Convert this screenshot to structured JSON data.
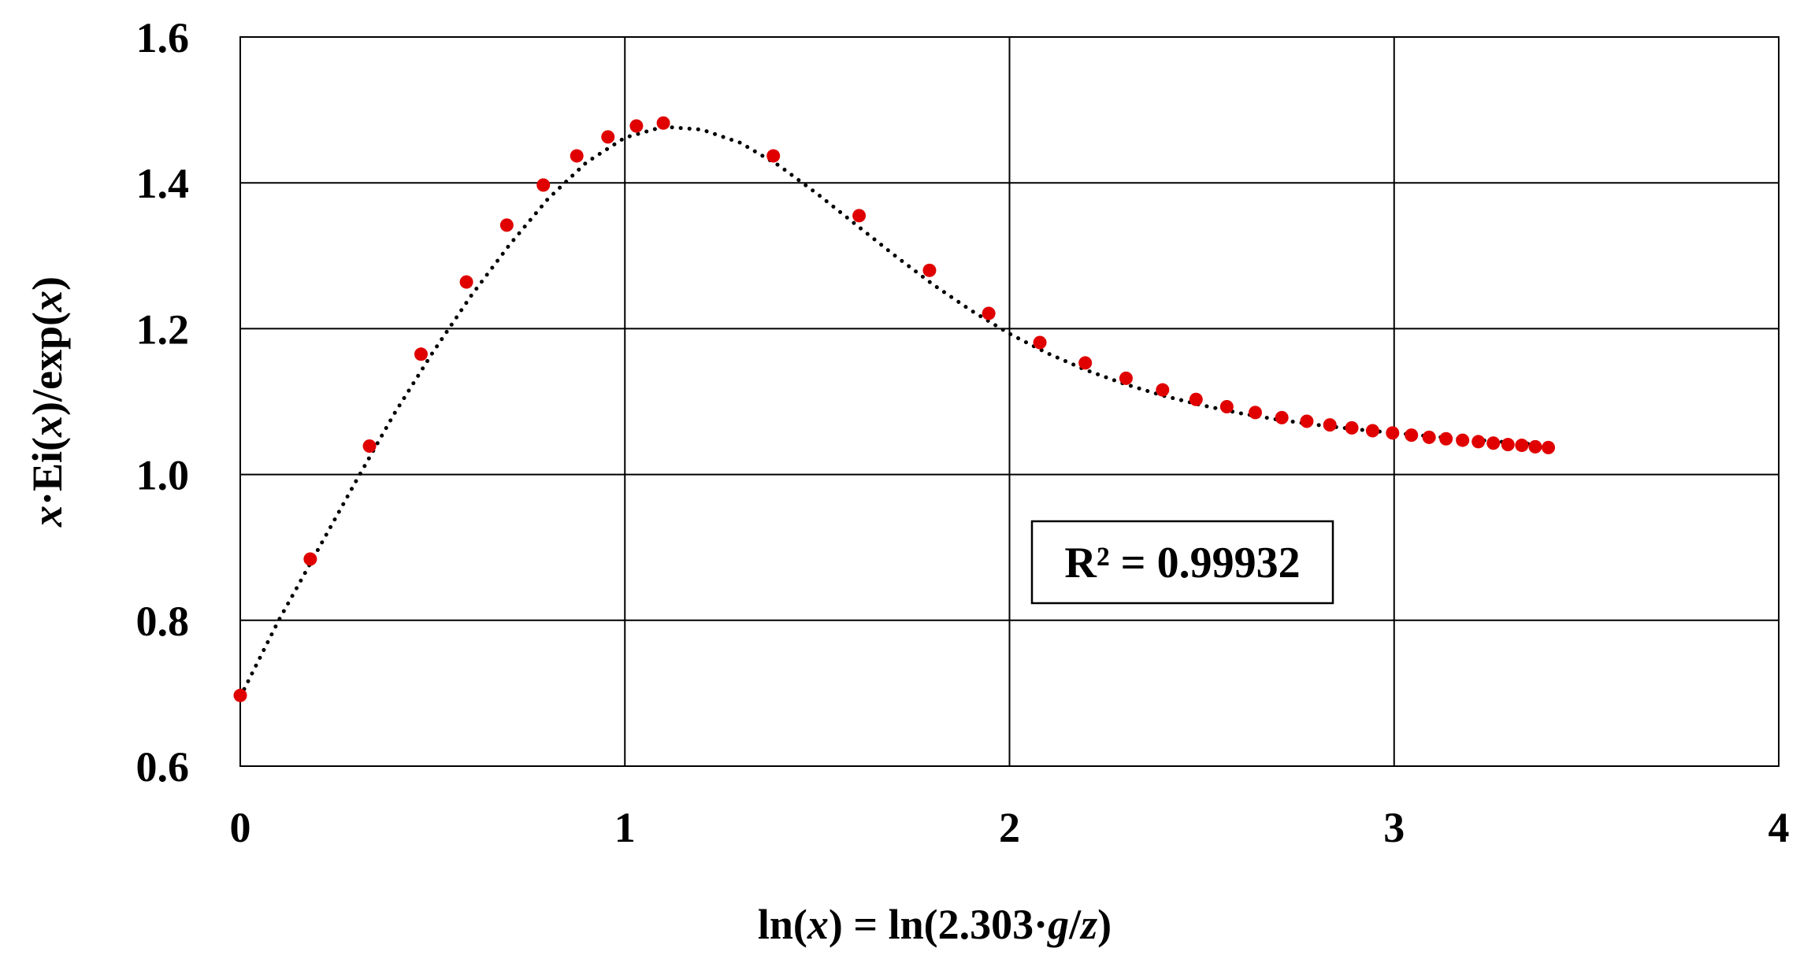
{
  "chart_data": {
    "type": "scatter",
    "xlabel_parts": [
      {
        "text": "ln(",
        "italic": false
      },
      {
        "text": "x",
        "italic": true
      },
      {
        "text": ") = ln(2.303·",
        "italic": false
      },
      {
        "text": "g",
        "italic": true
      },
      {
        "text": "/",
        "italic": false
      },
      {
        "text": "z",
        "italic": true
      },
      {
        "text": ")",
        "italic": false
      }
    ],
    "ylabel_parts": [
      {
        "text": "x",
        "italic": true
      },
      {
        "text": "·Ei(",
        "italic": false
      },
      {
        "text": "x",
        "italic": true
      },
      {
        "text": ")/exp(",
        "italic": false
      },
      {
        "text": "x",
        "italic": true
      },
      {
        "text": ")",
        "italic": false
      }
    ],
    "xlim": [
      0,
      4
    ],
    "ylim": [
      0.6,
      1.6
    ],
    "xticks": [
      "0",
      "1",
      "2",
      "3",
      "4"
    ],
    "yticks": [
      "0.6",
      "0.8",
      "1.0",
      "1.2",
      "1.4",
      "1.6"
    ],
    "grid": true,
    "annotation": "R² = 0.99932",
    "point_color": "#e00000",
    "trend_color": "#000000",
    "points": [
      [
        0.0,
        0.697
      ],
      [
        0.182,
        0.884
      ],
      [
        0.336,
        1.039
      ],
      [
        0.47,
        1.165
      ],
      [
        0.588,
        1.264
      ],
      [
        0.693,
        1.342
      ],
      [
        0.788,
        1.397
      ],
      [
        0.875,
        1.437
      ],
      [
        0.956,
        1.463
      ],
      [
        1.03,
        1.478
      ],
      [
        1.1,
        1.482
      ],
      [
        1.386,
        1.437
      ],
      [
        1.609,
        1.355
      ],
      [
        1.792,
        1.28
      ],
      [
        1.946,
        1.221
      ],
      [
        2.079,
        1.181
      ],
      [
        2.197,
        1.153
      ],
      [
        2.303,
        1.132
      ],
      [
        2.398,
        1.116
      ],
      [
        2.485,
        1.103
      ],
      [
        2.565,
        1.093
      ],
      [
        2.639,
        1.085
      ],
      [
        2.708,
        1.078
      ],
      [
        2.773,
        1.073
      ],
      [
        2.833,
        1.068
      ],
      [
        2.89,
        1.064
      ],
      [
        2.944,
        1.06
      ],
      [
        2.996,
        1.057
      ],
      [
        3.045,
        1.054
      ],
      [
        3.091,
        1.051
      ],
      [
        3.135,
        1.049
      ],
      [
        3.178,
        1.047
      ],
      [
        3.219,
        1.045
      ],
      [
        3.258,
        1.043
      ],
      [
        3.296,
        1.041
      ],
      [
        3.332,
        1.04
      ],
      [
        3.367,
        1.038
      ],
      [
        3.401,
        1.037
      ]
    ],
    "trendline": [
      [
        0.0,
        0.695
      ],
      [
        0.1,
        0.8
      ],
      [
        0.2,
        0.895
      ],
      [
        0.3,
        0.99
      ],
      [
        0.4,
        1.083
      ],
      [
        0.5,
        1.167
      ],
      [
        0.6,
        1.245
      ],
      [
        0.7,
        1.315
      ],
      [
        0.8,
        1.378
      ],
      [
        0.9,
        1.428
      ],
      [
        1.0,
        1.462
      ],
      [
        1.1,
        1.477
      ],
      [
        1.2,
        1.473
      ],
      [
        1.3,
        1.455
      ],
      [
        1.4,
        1.424
      ],
      [
        1.5,
        1.385
      ],
      [
        1.6,
        1.343
      ],
      [
        1.7,
        1.301
      ],
      [
        1.8,
        1.261
      ],
      [
        1.9,
        1.225
      ],
      [
        2.0,
        1.193
      ],
      [
        2.1,
        1.166
      ],
      [
        2.2,
        1.143
      ],
      [
        2.3,
        1.124
      ],
      [
        2.4,
        1.108
      ],
      [
        2.5,
        1.095
      ],
      [
        2.6,
        1.084
      ],
      [
        2.7,
        1.075
      ],
      [
        2.8,
        1.068
      ],
      [
        2.9,
        1.062
      ],
      [
        3.0,
        1.057
      ],
      [
        3.1,
        1.052
      ],
      [
        3.2,
        1.048
      ],
      [
        3.3,
        1.044
      ],
      [
        3.4,
        1.04
      ]
    ]
  }
}
